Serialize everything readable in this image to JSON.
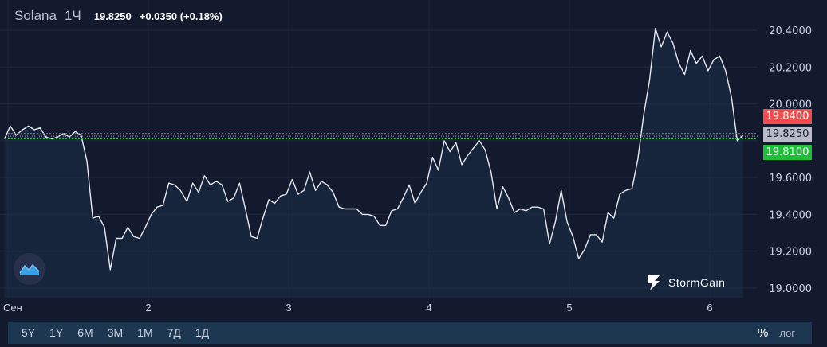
{
  "legend": {
    "symbol": "Solana",
    "timeframe": "1Ч",
    "price": "19.8250",
    "change": "+0.0350 (+0.18%)"
  },
  "price_tags": {
    "high": "19.8400",
    "current": "19.8250",
    "low": "19.8100"
  },
  "brand": {
    "name": "StormGain"
  },
  "range_buttons": [
    "5Y",
    "1Y",
    "6M",
    "3M",
    "1M",
    "7Д",
    "1Д"
  ],
  "scale_options": {
    "percent": "%",
    "log": "лог"
  },
  "colors": {
    "background": "#131a2e",
    "line": "#e6e9f0",
    "area": "#1c3048",
    "high_tag": "#f04c4c",
    "low_tag": "#1fbf3a",
    "current_tag": "#b9bcc6"
  },
  "chart_data": {
    "type": "area",
    "title": "Solana",
    "ylim": [
      18.95,
      20.47
    ],
    "y_ticks": [
      "20.4000",
      "20.2000",
      "20.0000",
      "19.6000",
      "19.4000",
      "19.2000",
      "19.0000"
    ],
    "x_tick_labels": [
      {
        "label": "Сен",
        "x": 0
      },
      {
        "label": "2",
        "x": 24
      },
      {
        "label": "3",
        "x": 48
      },
      {
        "label": "4",
        "x": 72
      },
      {
        "label": "5",
        "x": 96
      },
      {
        "label": "6",
        "x": 120
      }
    ],
    "xlim": [
      0,
      127.8
    ],
    "reference_lines": [
      {
        "name": "high",
        "value": 19.84,
        "color": "#f04c4c"
      },
      {
        "name": "low",
        "value": 19.81,
        "color": "#1fbf3a"
      }
    ],
    "grid": true,
    "series": [
      {
        "x": [
          -0.6,
          0.4,
          1.4,
          2.5,
          3.5,
          4.5,
          5.5,
          6.5,
          7.5,
          8.5,
          9.5,
          10.5,
          11.5,
          12.5,
          13.5,
          14.5,
          15.5,
          16.5,
          17.5,
          18.5,
          19.5,
          20.5,
          21.5,
          22.5,
          23.5,
          24.5,
          25.5,
          26.5,
          27.5,
          28.5,
          29.5,
          30.6,
          31.6,
          32.6,
          33.6,
          34.6,
          35.6,
          36.6,
          37.6,
          38.6,
          39.6,
          40.6,
          41.6,
          42.6,
          43.6,
          44.6,
          45.6,
          46.6,
          47.6,
          48.6,
          49.6,
          50.6,
          51.6,
          52.6,
          53.6,
          54.6,
          55.6,
          56.6,
          57.6,
          58.6,
          59.6,
          60.6,
          61.6,
          62.6,
          63.6,
          64.6,
          65.6,
          66.6,
          67.6,
          68.6,
          69.6,
          70.6,
          71.6,
          72.6,
          73.6,
          74.6,
          75.6,
          76.6,
          77.6,
          78.6,
          79.6,
          80.6,
          81.6,
          82.6,
          83.6,
          84.6,
          85.6,
          86.6,
          87.6,
          88.6,
          89.6,
          90.6,
          91.6,
          92.6,
          93.6,
          94.6,
          95.6,
          96.6,
          97.6,
          98.6,
          99.6,
          100.6,
          101.6,
          102.6,
          103.6,
          104.6,
          105.6,
          106.7,
          107.7,
          108.7,
          109.7,
          110.7,
          111.7,
          112.7,
          113.7,
          114.7,
          115.7,
          116.7,
          117.7,
          118.7,
          119.7,
          120.7,
          121.7,
          122.7,
          123.7,
          124.7,
          125.7
        ],
        "values": [
          19.81,
          19.88,
          19.83,
          19.86,
          19.88,
          19.86,
          19.87,
          19.82,
          19.81,
          19.82,
          19.84,
          19.82,
          19.85,
          19.83,
          19.69,
          19.38,
          19.39,
          19.33,
          19.1,
          19.27,
          19.27,
          19.33,
          19.28,
          19.27,
          19.33,
          19.4,
          19.44,
          19.45,
          19.57,
          19.56,
          19.53,
          19.47,
          19.57,
          19.52,
          19.61,
          19.56,
          19.58,
          19.56,
          19.47,
          19.49,
          19.57,
          19.43,
          19.28,
          19.27,
          19.38,
          19.48,
          19.46,
          19.5,
          19.51,
          19.59,
          19.51,
          19.53,
          19.63,
          19.53,
          19.58,
          19.56,
          19.52,
          19.44,
          19.43,
          19.43,
          19.43,
          19.4,
          19.4,
          19.39,
          19.34,
          19.34,
          19.42,
          19.43,
          19.49,
          19.56,
          19.46,
          19.52,
          19.57,
          19.71,
          19.64,
          19.8,
          19.74,
          19.79,
          19.67,
          19.72,
          19.76,
          19.8,
          19.75,
          19.63,
          19.43,
          19.55,
          19.49,
          19.41,
          19.43,
          19.42,
          19.44,
          19.44,
          19.43,
          19.24,
          19.36,
          19.53,
          19.36,
          19.28,
          19.16,
          19.21,
          19.29,
          19.29,
          19.25,
          19.41,
          19.38,
          19.51,
          19.53,
          19.54,
          19.7,
          19.94,
          20.13,
          20.41,
          20.31,
          20.39,
          20.33,
          20.22,
          20.16,
          20.29,
          20.22,
          20.26,
          20.18,
          20.24,
          20.26,
          20.18,
          20.04,
          19.8,
          19.83
        ]
      }
    ]
  }
}
